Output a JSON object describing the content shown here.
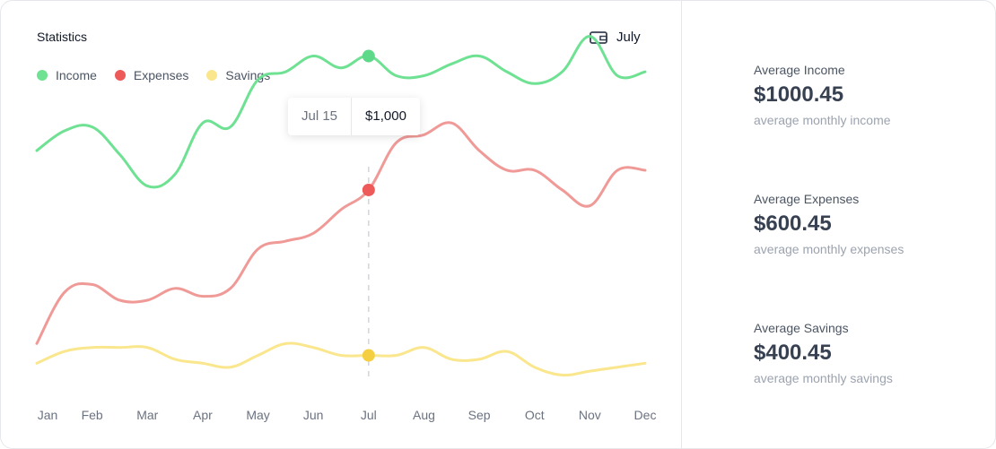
{
  "header": {
    "title": "Statistics",
    "month": "July"
  },
  "colors": {
    "income": "#6ee193",
    "expenses": "#f09a98",
    "savings": "#fae68c",
    "income_dot": "#5ed98a",
    "expenses_dot": "#ee5959",
    "savings_dot": "#f5cf42"
  },
  "tooltip": {
    "date": "Jul 15",
    "value": "$1,000"
  },
  "chart_data": {
    "type": "line",
    "categories": [
      "Jan",
      "Feb",
      "Mar",
      "Apr",
      "May",
      "Jun",
      "Jul",
      "Aug",
      "Sep",
      "Oct",
      "Nov",
      "Dec"
    ],
    "x": [
      0.0,
      0.5,
      1.0,
      1.5,
      2.0,
      2.5,
      3.0,
      3.5,
      4.0,
      4.5,
      5.0,
      5.5,
      6.0,
      6.5,
      7.0,
      7.5,
      8.0,
      8.5,
      9.0,
      9.5,
      10.0,
      10.5,
      11.0
    ],
    "series": [
      {
        "name": "Income",
        "values": [
          530,
          555,
          560,
          525,
          485,
          500,
          565,
          560,
          620,
          630,
          650,
          635,
          650,
          625,
          625,
          640,
          650,
          630,
          615,
          630,
          675,
          625,
          630
        ]
      },
      {
        "name": "Expenses",
        "values": [
          285,
          350,
          360,
          340,
          340,
          355,
          345,
          355,
          405,
          415,
          425,
          455,
          480,
          540,
          550,
          565,
          530,
          505,
          505,
          480,
          460,
          505,
          505
        ]
      },
      {
        "name": "Savings",
        "values": [
          260,
          275,
          280,
          280,
          280,
          265,
          260,
          255,
          270,
          285,
          280,
          270,
          270,
          270,
          280,
          265,
          265,
          275,
          255,
          245,
          250,
          255,
          260
        ]
      }
    ],
    "highlight": {
      "x": 6.0,
      "label": "Jul 15",
      "value": "$1,000"
    },
    "ylim": [
      150,
      720
    ],
    "grid": false,
    "legend": "top-left"
  },
  "legend": [
    {
      "label": "Income",
      "color": "#6ee193"
    },
    {
      "label": "Expenses",
      "color": "#ee5959"
    },
    {
      "label": "Savings",
      "color": "#fae68c"
    }
  ],
  "stats": [
    {
      "label": "Average Income",
      "value": "$1000.45",
      "sub": "average monthly income"
    },
    {
      "label": "Average Expenses",
      "value": "$600.45",
      "sub": "average monthly expenses"
    },
    {
      "label": "Average Savings",
      "value": "$400.45",
      "sub": "average monthly savings"
    }
  ]
}
